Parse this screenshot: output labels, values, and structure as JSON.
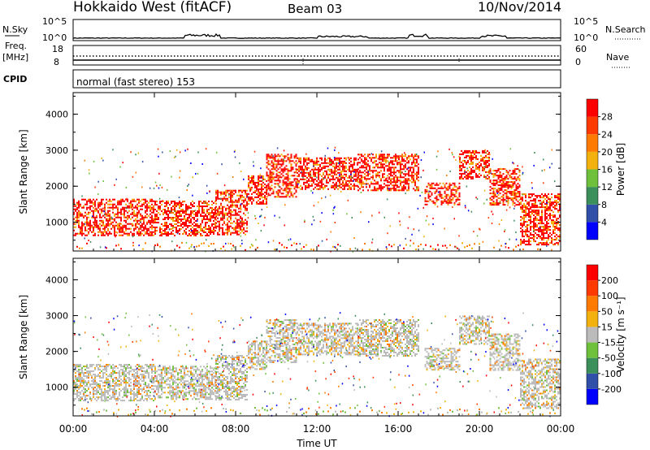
{
  "header": {
    "station": "Hokkaido West (fitACF)",
    "beam": "Beam 03",
    "date": "10/Nov/2014"
  },
  "status_panels": {
    "nsky_label": "N.Sky",
    "nsky_ticks": [
      "10^5",
      "10^0"
    ],
    "nsearch_label": "N.Search",
    "nsearch_ticks": [
      "10^5",
      "10^0"
    ],
    "freq_label_1": "Freq.",
    "freq_label_2": "[MHz]",
    "freq_ticks": [
      "18",
      "8"
    ],
    "nave_label": "Nave",
    "nave_ticks": [
      "60",
      "0"
    ],
    "cpid_label": "CPID",
    "cpid_text": "normal (fast stereo) 153"
  },
  "chart_data": [
    {
      "type": "heatmap",
      "name": "power",
      "ylabel": "Slant Range [km]",
      "yticks": [
        1000,
        2000,
        3000,
        4000
      ],
      "ylim": [
        200,
        4600
      ],
      "xlim_hours": [
        0,
        24
      ],
      "colorbar_label": "Power [dB]",
      "colorbar_ticks": [
        "4",
        "8",
        "12",
        "16",
        "20",
        "24",
        "28"
      ],
      "colorbar_colors": [
        "#0000ff",
        "#2f4fa8",
        "#3a8f5a",
        "#6fc13c",
        "#f2b10e",
        "#ff7a00",
        "#ff3a00",
        "#ff0000"
      ],
      "dominant_color": "#ff0000",
      "secondary_colors": [
        "#ff7a00",
        "#f2b10e"
      ],
      "bands": [
        {
          "t0": 0.0,
          "t1": 4.0,
          "r0": 650,
          "r1": 1650
        },
        {
          "t0": 4.0,
          "t1": 7.0,
          "r0": 650,
          "r1": 1600
        },
        {
          "t0": 7.0,
          "t1": 8.6,
          "r0": 650,
          "r1": 1900
        },
        {
          "t0": 8.6,
          "t1": 9.5,
          "r0": 1500,
          "r1": 2300
        },
        {
          "t0": 9.5,
          "t1": 11.0,
          "r0": 1700,
          "r1": 2900
        },
        {
          "t0": 11.0,
          "t1": 14.0,
          "r0": 1900,
          "r1": 2800
        },
        {
          "t0": 14.0,
          "t1": 17.0,
          "r0": 1900,
          "r1": 2900
        },
        {
          "t0": 17.3,
          "t1": 19.0,
          "r0": 1500,
          "r1": 2100
        },
        {
          "t0": 19.0,
          "t1": 20.5,
          "r0": 2200,
          "r1": 3000
        },
        {
          "t0": 20.5,
          "t1": 22.0,
          "r0": 1500,
          "r1": 2500
        },
        {
          "t0": 22.0,
          "t1": 24.0,
          "r0": 400,
          "r1": 1800
        }
      ]
    },
    {
      "type": "heatmap",
      "name": "velocity",
      "ylabel": "Slant Range [km]",
      "yticks": [
        1000,
        2000,
        3000,
        4000
      ],
      "ylim": [
        200,
        4600
      ],
      "xlim_hours": [
        0,
        24
      ],
      "xticks": [
        "00:00",
        "04:00",
        "08:00",
        "12:00",
        "16:00",
        "20:00",
        "00:00"
      ],
      "xlabel": "Time UT",
      "colorbar_label": "Velocity [m s⁻¹]",
      "colorbar_ticks": [
        "200",
        "100",
        "50",
        "15",
        "-15",
        "-50",
        "-100",
        "-200"
      ],
      "colorbar_colors": [
        "#0000ff",
        "#2f4fa8",
        "#3a8f5a",
        "#6fc13c",
        "#bbbbbb",
        "#f2b10e",
        "#ff7a00",
        "#ff3a00",
        "#ff0000"
      ],
      "dominant_color": "#bbbbbb",
      "secondary_colors": [
        "#f2b10e",
        "#6fc13c",
        "#ff7a00"
      ],
      "bands": [
        {
          "t0": 0.0,
          "t1": 4.0,
          "r0": 650,
          "r1": 1650
        },
        {
          "t0": 4.0,
          "t1": 7.0,
          "r0": 650,
          "r1": 1600
        },
        {
          "t0": 7.0,
          "t1": 8.6,
          "r0": 650,
          "r1": 1900
        },
        {
          "t0": 8.6,
          "t1": 9.5,
          "r0": 1500,
          "r1": 2300
        },
        {
          "t0": 9.5,
          "t1": 11.0,
          "r0": 1700,
          "r1": 2900
        },
        {
          "t0": 11.0,
          "t1": 14.0,
          "r0": 1900,
          "r1": 2800
        },
        {
          "t0": 14.0,
          "t1": 17.0,
          "r0": 1900,
          "r1": 2900
        },
        {
          "t0": 17.3,
          "t1": 19.0,
          "r0": 1500,
          "r1": 2100
        },
        {
          "t0": 19.0,
          "t1": 20.5,
          "r0": 2200,
          "r1": 3000
        },
        {
          "t0": 20.5,
          "t1": 22.0,
          "r0": 1500,
          "r1": 2500
        },
        {
          "t0": 22.0,
          "t1": 24.0,
          "r0": 400,
          "r1": 1800
        }
      ]
    }
  ]
}
